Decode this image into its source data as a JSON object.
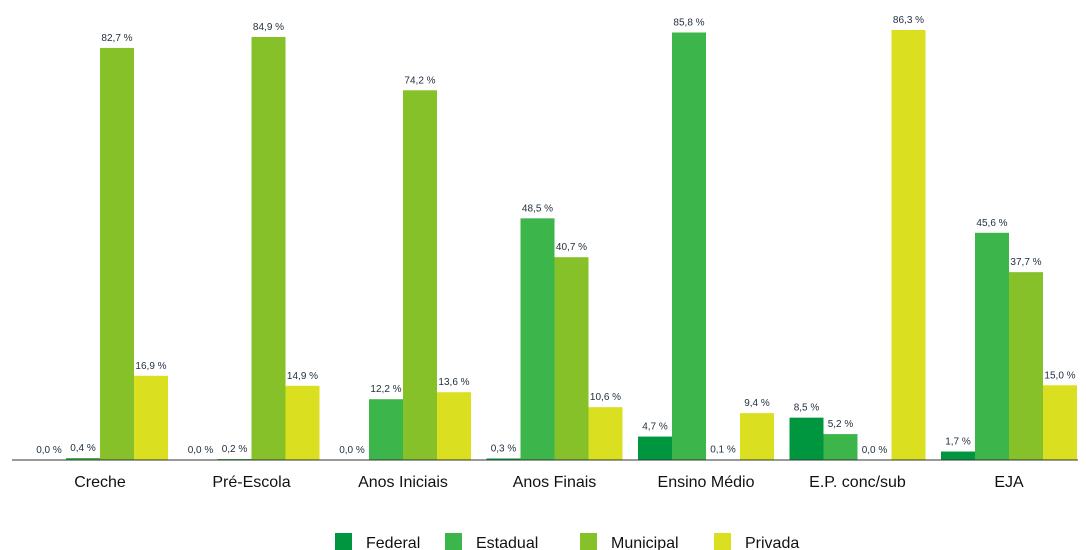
{
  "chart_data": {
    "type": "bar",
    "categories": [
      "Creche",
      "Pré-Escola",
      "Anos Iniciais",
      "Anos Finais",
      "Ensino Médio",
      "E.P. conc/sub",
      "EJA"
    ],
    "series": [
      {
        "name": "Federal",
        "color": "#009640",
        "values": [
          0.0,
          0.0,
          0.0,
          0.3,
          4.7,
          8.5,
          1.7
        ],
        "labels": [
          "0,0 %",
          "0,0 %",
          "0,0 %",
          "0,3 %",
          "4,7 %",
          "8,5 %",
          "1,7 %"
        ]
      },
      {
        "name": "Estadual",
        "color": "#3cb54a",
        "values": [
          0.4,
          0.2,
          12.2,
          48.5,
          85.8,
          5.2,
          45.6
        ],
        "labels": [
          "0,4 %",
          "0,2 %",
          "12,2 %",
          "48,5 %",
          "85,8 %",
          "5,2 %",
          "45,6 %"
        ]
      },
      {
        "name": "Municipal",
        "color": "#86c12a",
        "values": [
          82.7,
          84.9,
          74.2,
          40.7,
          0.1,
          0.0,
          37.7
        ],
        "labels": [
          "82,7 %",
          "84,9 %",
          "74,2 %",
          "40,7 %",
          "0,1 %",
          "0,0 %",
          "37,7 %"
        ]
      },
      {
        "name": "Privada",
        "color": "#dadf1f",
        "values": [
          16.9,
          14.9,
          13.6,
          10.6,
          9.4,
          86.3,
          15.0
        ],
        "labels": [
          "16,9 %",
          "14,9 %",
          "13,6 %",
          "10,6 %",
          "9,4 %",
          "86,3 %",
          "15,0 %"
        ]
      }
    ],
    "ylim": [
      0,
      100
    ],
    "grid": false,
    "legend_position": "bottom-center"
  }
}
